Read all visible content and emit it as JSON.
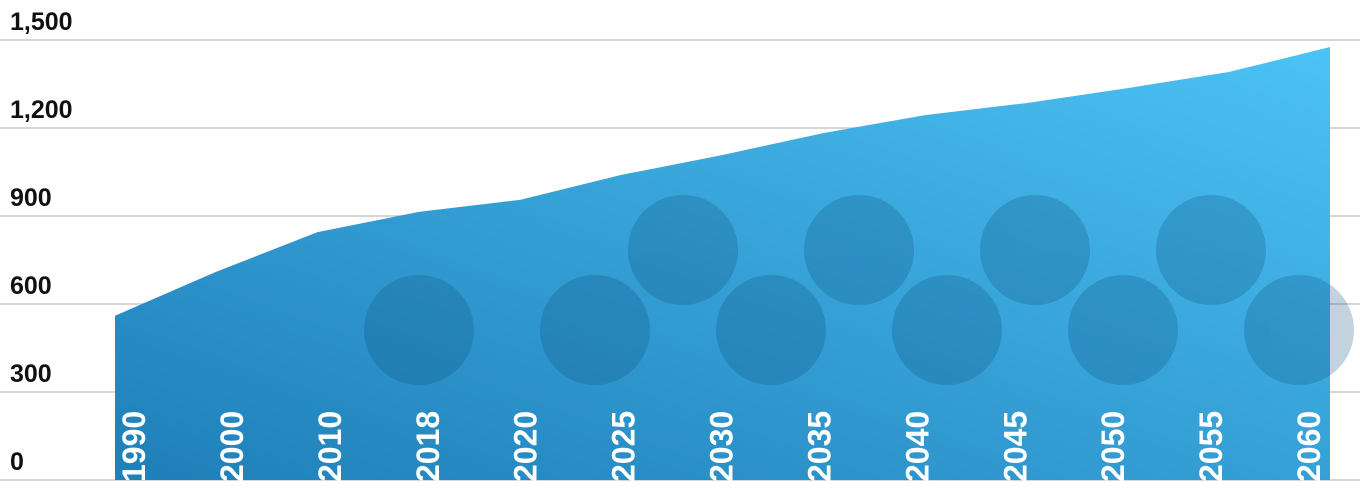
{
  "chart_data": {
    "type": "area",
    "categories": [
      "1990",
      "2000",
      "2010",
      "2018",
      "2020",
      "2025",
      "2030",
      "2035",
      "2040",
      "2045",
      "2050",
      "2055",
      "2060"
    ],
    "values": [
      560,
      710,
      845,
      914,
      955,
      1040,
      1108,
      1183,
      1244,
      1285,
      1336,
      1391,
      1476
    ],
    "color": "#2f9ad6",
    "ylim": [
      0,
      1500
    ],
    "yticks": [
      0,
      300,
      600,
      900,
      {
        "value": 1200,
        "label": "1,200"
      },
      {
        "value": 1500,
        "label": "1,500"
      }
    ],
    "grid": true
  }
}
